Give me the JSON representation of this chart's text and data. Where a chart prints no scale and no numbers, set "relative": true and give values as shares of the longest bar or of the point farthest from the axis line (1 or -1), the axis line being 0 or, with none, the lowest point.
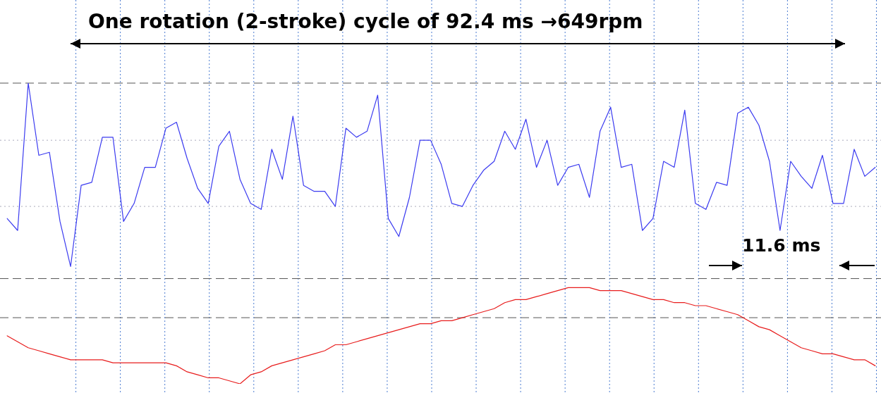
{
  "chart_data": {
    "type": "line",
    "relative": true,
    "grid": "x",
    "ref_lines": [
      {
        "axis": "y",
        "value": 1,
        "color": "#555555",
        "line_style": "dashed"
      },
      {
        "axis": "y",
        "value": 0.81,
        "color": "#aaaabb",
        "line_style": "dotted"
      },
      {
        "axis": "y",
        "value": 0.59,
        "color": "#aaaabb",
        "line_style": "dotted"
      },
      {
        "axis": "y",
        "value": 0.35,
        "color": "#555555",
        "line_style": "dashed"
      },
      {
        "axis": "y",
        "value": 0.22,
        "color": "#555555",
        "line_style": "dashed"
      }
    ],
    "legend": false,
    "marker": "none",
    "line_style": "solid",
    "annotations": [
      "One rotation (2-stroke) cycle of 92.4 ms →649rpm",
      "11.6 ms"
    ],
    "categories": [
      null,
      null,
      null,
      null,
      null,
      null,
      null,
      null,
      null,
      null,
      null,
      null,
      null,
      null,
      null,
      null,
      null,
      null,
      null,
      null,
      null,
      null,
      null,
      null,
      null,
      null,
      null,
      null,
      null,
      null,
      null,
      null,
      null,
      null,
      null,
      null,
      null,
      null,
      null,
      null,
      null,
      null,
      null,
      null,
      null,
      null,
      null,
      null,
      null,
      null,
      null,
      null,
      null,
      null,
      null,
      null,
      null,
      null,
      null,
      null,
      null,
      null,
      null,
      null,
      null,
      null,
      null,
      null,
      null,
      null,
      null,
      null,
      null,
      null,
      null,
      null,
      null,
      null,
      null,
      null,
      null,
      null,
      null
    ],
    "series": [
      {
        "color": "#3b3bf0",
        "values": [
          0.55,
          0.51,
          1,
          0.76,
          0.77,
          0.54,
          0.39,
          0.66,
          0.67,
          0.82,
          0.82,
          0.54,
          0.6,
          0.72,
          0.72,
          0.85,
          0.87,
          0.75,
          0.65,
          0.6,
          0.79,
          0.84,
          0.68,
          0.6,
          0.58,
          0.78,
          0.68,
          0.89,
          0.66,
          0.64,
          0.64,
          0.59,
          0.85,
          0.82,
          0.84,
          0.96,
          0.55,
          0.49,
          0.62,
          0.81,
          0.81,
          0.73,
          0.6,
          0.59,
          0.66,
          0.71,
          0.74,
          0.84,
          0.78,
          0.88,
          0.72,
          0.81,
          0.66,
          0.72,
          0.73,
          0.62,
          0.84,
          0.92,
          0.72,
          0.73,
          0.51,
          0.55,
          0.74,
          0.72,
          0.91,
          0.6,
          0.58,
          0.67,
          0.66,
          0.9,
          0.92,
          0.86,
          0.74,
          0.51,
          0.74,
          0.69,
          0.65,
          0.76,
          0.6,
          0.6,
          0.78,
          0.69,
          0.72
        ]
      },
      {
        "color": "#e81c1c",
        "values": [
          0.16,
          0.14,
          0.12,
          0.11,
          0.1,
          0.09,
          0.08,
          0.08,
          0.08,
          0.08,
          0.07,
          0.07,
          0.07,
          0.07,
          0.07,
          0.07,
          0.06,
          0.04,
          0.03,
          0.02,
          0.02,
          0.01,
          0,
          0.03,
          0.04,
          0.06,
          0.07,
          0.08,
          0.09,
          0.1,
          0.11,
          0.13,
          0.13,
          0.14,
          0.15,
          0.16,
          0.17,
          0.18,
          0.19,
          0.2,
          0.2,
          0.21,
          0.21,
          0.22,
          0.23,
          0.24,
          0.25,
          0.27,
          0.28,
          0.28,
          0.29,
          0.3,
          0.31,
          0.32,
          0.32,
          0.32,
          0.31,
          0.31,
          0.31,
          0.3,
          0.29,
          0.28,
          0.28,
          0.27,
          0.27,
          0.26,
          0.26,
          0.25,
          0.24,
          0.23,
          0.21,
          0.19,
          0.18,
          0.16,
          0.14,
          0.12,
          0.11,
          0.1,
          0.1,
          0.09,
          0.08,
          0.08,
          0.06
        ]
      }
    ]
  }
}
